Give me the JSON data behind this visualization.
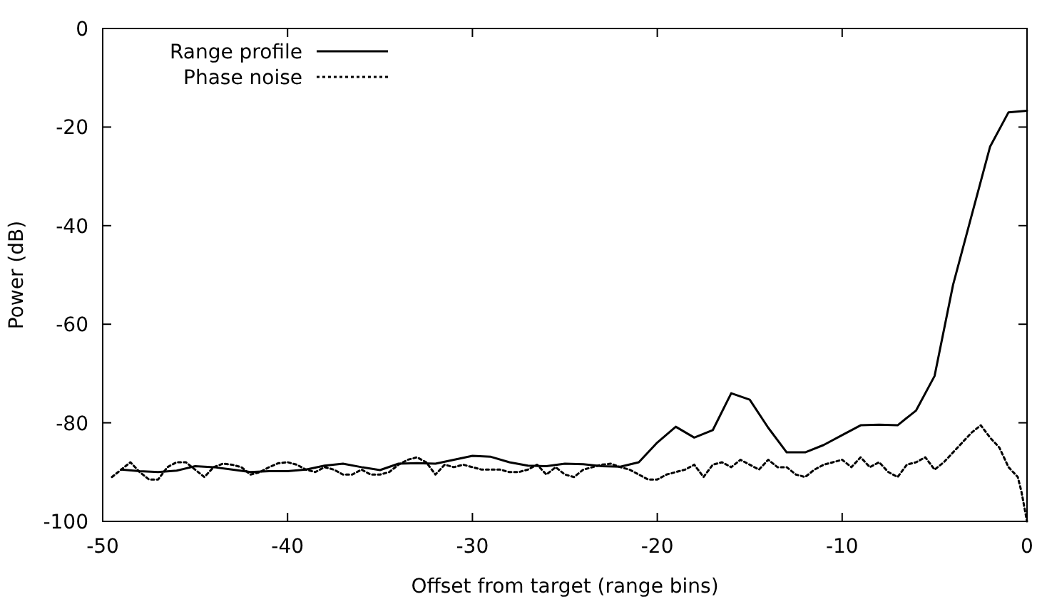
{
  "chart_data": {
    "type": "line",
    "xlabel": "Offset from target (range bins)",
    "ylabel": "Power (dB)",
    "xlim": [
      -50,
      0
    ],
    "ylim": [
      -100,
      0
    ],
    "xticks": [
      -50,
      -40,
      -30,
      -20,
      -10,
      0
    ],
    "yticks": [
      -100,
      -80,
      -60,
      -40,
      -20,
      0
    ],
    "grid": false,
    "legend": "top left",
    "series": [
      {
        "name": "Range profile",
        "color": "#000000",
        "line_style": "solid",
        "x": [
          -49,
          -48,
          -47,
          -46,
          -45,
          -44,
          -43,
          -42,
          -41,
          -40,
          -39,
          -38,
          -37,
          -36,
          -35,
          -34,
          -33,
          -32,
          -31,
          -30,
          -29,
          -28,
          -27,
          -26,
          -25,
          -24,
          -23,
          -22,
          -21,
          -20,
          -19,
          -18,
          -17,
          -16,
          -15,
          -14,
          -13,
          -12,
          -11,
          -10,
          -9,
          -8,
          -7,
          -6,
          -5,
          -4,
          -3,
          -2,
          -1,
          0
        ],
        "values": [
          -89.5,
          -89.8,
          -90,
          -89.7,
          -88.8,
          -89,
          -89.5,
          -90,
          -89.8,
          -89.8,
          -89.5,
          -88.7,
          -88.3,
          -89,
          -89.6,
          -88.3,
          -88.2,
          -88.3,
          -87.5,
          -86.7,
          -86.9,
          -88,
          -88.7,
          -88.8,
          -88.3,
          -88.4,
          -88.8,
          -88.9,
          -88,
          -84,
          -80.8,
          -83,
          -81.5,
          -74,
          -75.3,
          -81,
          -86,
          -86,
          -84.5,
          -82.5,
          -80.5,
          -80.4,
          -80.5,
          -77.5,
          -70.5,
          -52,
          -38,
          -24,
          -17,
          -16.7
        ]
      },
      {
        "name": "Phase noise",
        "color": "#000000",
        "line_style": "dotted",
        "x": [
          -49.5,
          -49,
          -48.5,
          -48,
          -47.5,
          -47,
          -46.5,
          -46,
          -45.5,
          -45,
          -44.5,
          -44,
          -43.5,
          -43,
          -42.5,
          -42,
          -41.5,
          -41,
          -40.5,
          -40,
          -39.5,
          -39,
          -38.5,
          -38,
          -37.5,
          -37,
          -36.5,
          -36,
          -35.5,
          -35,
          -34.5,
          -34,
          -33.5,
          -33,
          -32.5,
          -32,
          -31.5,
          -31,
          -30.5,
          -30,
          -29.5,
          -29,
          -28.5,
          -28,
          -27.5,
          -27,
          -26.5,
          -26,
          -25.5,
          -25,
          -24.5,
          -24,
          -23.5,
          -23,
          -22.5,
          -22,
          -21.5,
          -21,
          -20.5,
          -20,
          -19.5,
          -19,
          -18.5,
          -18,
          -17.5,
          -17,
          -16.5,
          -16,
          -15.5,
          -15,
          -14.5,
          -14,
          -13.5,
          -13,
          -12.5,
          -12,
          -11.5,
          -11,
          -10.5,
          -10,
          -9.5,
          -9,
          -8.5,
          -8,
          -7.5,
          -7,
          -6.5,
          -6,
          -5.5,
          -5,
          -4.5,
          -4,
          -3.5,
          -3,
          -2.5,
          -2,
          -1.5,
          -1,
          -0.5,
          -0.3,
          -0.1,
          0
        ],
        "values": [
          -91,
          -89.5,
          -88,
          -90,
          -91.5,
          -91.5,
          -89,
          -88,
          -88,
          -89.5,
          -91,
          -89,
          -88.3,
          -88.5,
          -89,
          -90.5,
          -90,
          -89,
          -88.2,
          -88,
          -88.5,
          -89.5,
          -90,
          -89,
          -89.5,
          -90.5,
          -90.5,
          -89.5,
          -90.5,
          -90.5,
          -90,
          -88.5,
          -87.5,
          -87,
          -88,
          -90.5,
          -88.5,
          -89,
          -88.5,
          -89,
          -89.5,
          -89.5,
          -89.5,
          -90,
          -90,
          -89.5,
          -88.5,
          -90.5,
          -89,
          -90.5,
          -91,
          -89.5,
          -89,
          -88.5,
          -88.3,
          -89,
          -89.5,
          -90.5,
          -91.5,
          -91.5,
          -90.5,
          -90,
          -89.5,
          -88.5,
          -91,
          -88.5,
          -88,
          -89,
          -87.5,
          -88.5,
          -89.5,
          -87.5,
          -89,
          -89,
          -90.5,
          -91,
          -89.5,
          -88.5,
          -88,
          -87.5,
          -89,
          -87,
          -89,
          -88,
          -90,
          -91,
          -88.5,
          -88,
          -87,
          -89.5,
          -88,
          -86,
          -84,
          -82,
          -80.5,
          -83,
          -85,
          -89,
          -91,
          -94,
          -98,
          -100
        ]
      }
    ]
  }
}
